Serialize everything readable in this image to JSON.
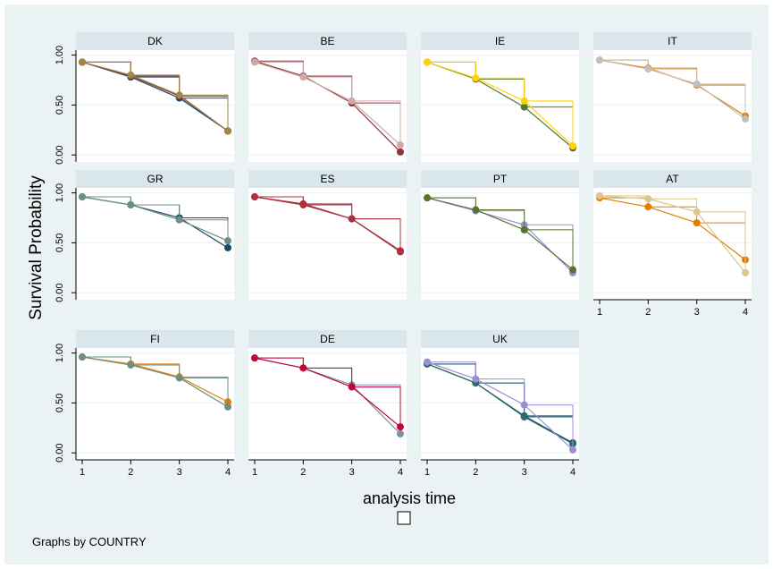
{
  "chart_data": {
    "type": "line",
    "layout": "small-multiples",
    "ylabel": "Survival Probability",
    "xlabel": "analysis time",
    "note": "Graphs by COUNTRY",
    "x": [
      1,
      2,
      3,
      4
    ],
    "xticks": [
      "1",
      "2",
      "3",
      "4"
    ],
    "xlim": [
      1,
      4
    ],
    "ylim": [
      0,
      1
    ],
    "yticks": [
      "0.00",
      "0.50",
      "1.00"
    ],
    "legend_placement": "bottom",
    "grid": true,
    "panels": [
      {
        "title": "DK",
        "series": [
          {
            "color": "#1a476f",
            "values": [
              0.93,
              0.78,
              0.57,
              0.24
            ]
          },
          {
            "color": "#90353b",
            "values": [
              0.93,
              0.79,
              0.59,
              0.24
            ]
          },
          {
            "color": "#9c8847",
            "values": [
              0.93,
              0.8,
              0.6,
              0.24
            ]
          }
        ]
      },
      {
        "title": "BE",
        "series": [
          {
            "color": "#90353b",
            "values": [
              0.94,
              0.79,
              0.52,
              0.03
            ]
          },
          {
            "color": "#d0a8a8",
            "values": [
              0.93,
              0.78,
              0.54,
              0.1
            ]
          }
        ]
      },
      {
        "title": "IE",
        "series": [
          {
            "color": "#55752f",
            "values": [
              0.93,
              0.76,
              0.48,
              0.07
            ]
          },
          {
            "color": "#ffd200",
            "values": [
              0.93,
              0.77,
              0.54,
              0.09
            ]
          }
        ]
      },
      {
        "title": "IT",
        "series": [
          {
            "color": "#e37e00",
            "values": [
              0.95,
              0.87,
              0.7,
              0.39
            ]
          },
          {
            "color": "#c0c0c0",
            "values": [
              0.95,
              0.86,
              0.71,
              0.36
            ]
          }
        ]
      },
      {
        "title": "GR",
        "series": [
          {
            "color": "#1a476f",
            "values": [
              0.96,
              0.88,
              0.75,
              0.45
            ]
          },
          {
            "color": "#6e8e84",
            "values": [
              0.96,
              0.88,
              0.73,
              0.52
            ]
          }
        ]
      },
      {
        "title": "ES",
        "series": [
          {
            "color": "#90353b",
            "values": [
              0.96,
              0.88,
              0.74,
              0.41
            ]
          },
          {
            "color": "#b03040",
            "values": [
              0.96,
              0.89,
              0.74,
              0.42
            ]
          }
        ]
      },
      {
        "title": "PT",
        "series": [
          {
            "color": "#9a8ed8",
            "values": [
              0.95,
              0.82,
              0.68,
              0.2
            ]
          },
          {
            "color": "#55752f",
            "values": [
              0.95,
              0.83,
              0.63,
              0.23
            ]
          }
        ]
      },
      {
        "title": "AT",
        "series": [
          {
            "color": "#e37e00",
            "values": [
              0.95,
              0.86,
              0.7,
              0.33
            ]
          },
          {
            "color": "#d8c88a",
            "values": [
              0.97,
              0.94,
              0.81,
              0.2
            ]
          }
        ]
      },
      {
        "title": "FI",
        "series": [
          {
            "color": "#e37e00",
            "values": [
              0.96,
              0.89,
              0.76,
              0.51
            ]
          },
          {
            "color": "#6e8e84",
            "values": [
              0.96,
              0.88,
              0.75,
              0.46
            ]
          }
        ]
      },
      {
        "title": "DE",
        "series": [
          {
            "color": "#7b92a8",
            "values": [
              0.95,
              0.85,
              0.68,
              0.19
            ]
          },
          {
            "color": "#c10534",
            "values": [
              0.95,
              0.85,
              0.66,
              0.26
            ]
          }
        ]
      },
      {
        "title": "UK",
        "series": [
          {
            "color": "#1a476f",
            "values": [
              0.89,
              0.7,
              0.37,
              0.1
            ]
          },
          {
            "color": "#2d6d66",
            "values": [
              0.89,
              0.7,
              0.36,
              0.09
            ]
          },
          {
            "color": "#9a8ed8",
            "values": [
              0.91,
              0.74,
              0.48,
              0.03
            ]
          }
        ]
      }
    ]
  },
  "colors": {
    "outer_background": "#eaf2f3",
    "plot_background": "#ffffff",
    "panel_title_background": "#d9e6eb",
    "gridline": "#eaf2f3"
  }
}
